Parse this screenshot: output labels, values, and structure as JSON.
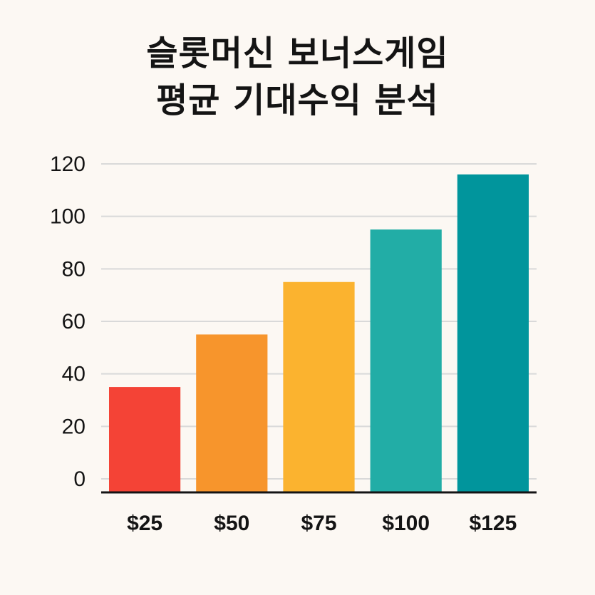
{
  "chart_data": {
    "type": "bar",
    "title_lines": [
      "슬롯머신 보너스게임",
      "평균 기대수익 분석"
    ],
    "categories": [
      "$25",
      "$50",
      "$75",
      "$100",
      "$125"
    ],
    "values": [
      35,
      55,
      75,
      95,
      116
    ],
    "colors": [
      "#f44336",
      "#f7952c",
      "#fbb32f",
      "#22ada6",
      "#01959c"
    ],
    "ylim": [
      0,
      120
    ],
    "yticks": [
      0,
      20,
      40,
      60,
      80,
      100,
      120
    ],
    "grid": true,
    "xlabel": "",
    "ylabel": ""
  }
}
